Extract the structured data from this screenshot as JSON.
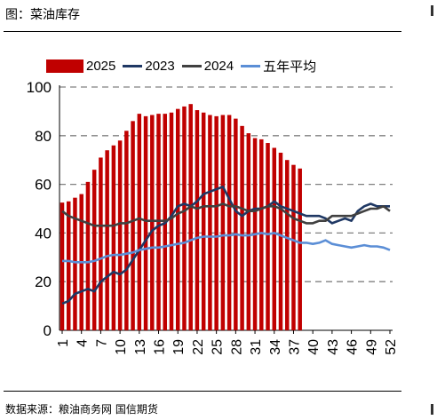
{
  "figure_title": "图：菜油库存",
  "source_text": "数据来源：粮油商务网  国信期货",
  "colors": {
    "bar_2025": "#c00000",
    "line_2023": "#1f3864",
    "line_2024": "#404040",
    "line_avg": "#5b8ed6",
    "grid": "#808080"
  },
  "chart_data": {
    "type": "bar",
    "x_ticks": [
      "1",
      "4",
      "7",
      "10",
      "13",
      "16",
      "19",
      "22",
      "25",
      "28",
      "31",
      "34",
      "37",
      "40",
      "43",
      "46",
      "49",
      "52"
    ],
    "xlim": [
      1,
      52
    ],
    "ylim": [
      0,
      100
    ],
    "y_ticks": [
      0,
      20,
      40,
      60,
      80,
      100
    ],
    "grid": "horizontal dashed",
    "legend_position": "top",
    "series": [
      {
        "name": "2025",
        "type": "bar",
        "values": [
          52.5,
          53,
          54.5,
          56,
          61,
          66,
          71,
          74,
          76,
          78,
          82,
          86,
          89,
          88,
          88.5,
          89,
          89,
          89.5,
          91,
          92,
          93,
          90.5,
          89.5,
          88.5,
          88,
          88.5,
          88.5,
          87,
          84,
          81,
          79,
          78.5,
          77,
          75,
          73,
          70,
          68,
          66.5
        ]
      },
      {
        "name": "2023",
        "type": "line",
        "values": [
          11,
          12,
          15,
          16,
          17,
          16,
          20,
          22,
          24,
          23,
          25,
          29,
          33,
          37,
          41,
          43,
          44,
          47,
          51,
          52,
          51,
          53,
          56,
          57,
          58,
          59,
          54,
          49,
          47,
          49,
          50,
          50,
          51,
          53,
          51,
          50,
          49,
          48,
          47,
          47,
          47,
          46,
          44,
          45,
          46,
          45,
          49,
          51,
          52,
          51,
          51,
          51
        ]
      },
      {
        "name": "2024",
        "type": "line",
        "values": [
          49,
          47,
          46,
          45,
          44,
          43,
          43,
          43,
          43,
          44,
          44,
          45,
          46,
          45,
          45,
          45,
          45,
          46,
          48,
          49,
          51,
          50,
          51,
          51,
          51,
          52,
          51,
          51,
          50,
          49,
          49,
          50,
          51,
          51,
          50,
          48,
          46,
          45,
          44,
          44,
          45,
          45,
          47,
          47,
          47,
          47,
          48,
          49,
          50,
          50,
          51,
          49
        ]
      },
      {
        "name": "五年平均",
        "type": "line",
        "values": [
          28.5,
          28.5,
          28,
          28,
          28,
          28.5,
          29.5,
          30.5,
          31,
          31,
          31.5,
          32,
          33,
          33.5,
          34,
          34,
          34.5,
          35,
          35.5,
          36,
          37,
          38,
          38.5,
          38.5,
          38.5,
          39,
          39,
          39.5,
          39,
          39,
          39.5,
          40,
          39.5,
          40,
          39,
          38,
          37,
          36,
          36,
          35.5,
          36,
          37,
          35.5,
          35,
          34.5,
          34,
          34.5,
          35,
          34.5,
          34.5,
          34,
          33
        ]
      }
    ]
  }
}
